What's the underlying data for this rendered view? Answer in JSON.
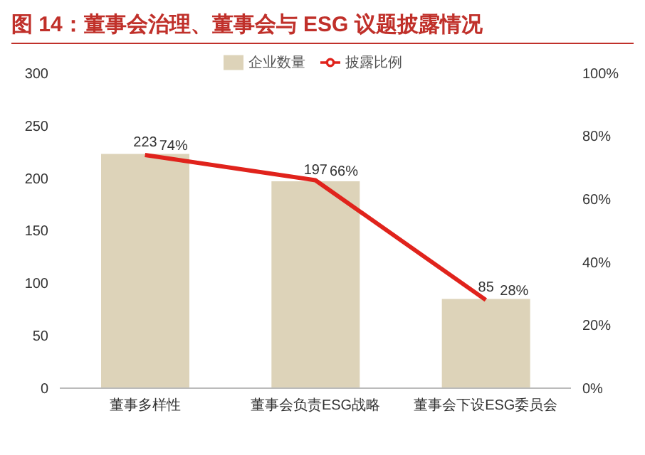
{
  "chart_data": {
    "type": "bar",
    "title": "图 14：董事会治理、董事会与 ESG 议题披露情况",
    "categories": [
      "董事多样性",
      "董事会负责ESG战略",
      "董事会下设ESG委员会"
    ],
    "series": [
      {
        "name": "企业数量",
        "color": "#ddd3b9",
        "values": [
          223,
          197,
          85
        ],
        "value_labels": [
          "223",
          "197",
          "85"
        ]
      },
      {
        "name": "披露比例",
        "type": "line",
        "axis": "y2",
        "color": "#e0231c",
        "values": [
          74,
          66,
          28
        ],
        "value_labels": [
          "74%",
          "66%",
          "28%"
        ]
      }
    ],
    "ylim": [
      0,
      300
    ],
    "yticks": [
      0,
      50,
      100,
      150,
      200,
      250,
      300
    ],
    "y2lim": [
      0,
      100
    ],
    "y2ticks": [
      {
        "value": 0,
        "label": "0%"
      },
      {
        "value": 20,
        "label": "20%"
      },
      {
        "value": 40,
        "label": "40%"
      },
      {
        "value": 60,
        "label": "60%"
      },
      {
        "value": 80,
        "label": "80%"
      },
      {
        "value": 100,
        "label": "100%"
      }
    ],
    "grid": false,
    "legend": "top",
    "marker": "none",
    "line_style": "solid"
  }
}
